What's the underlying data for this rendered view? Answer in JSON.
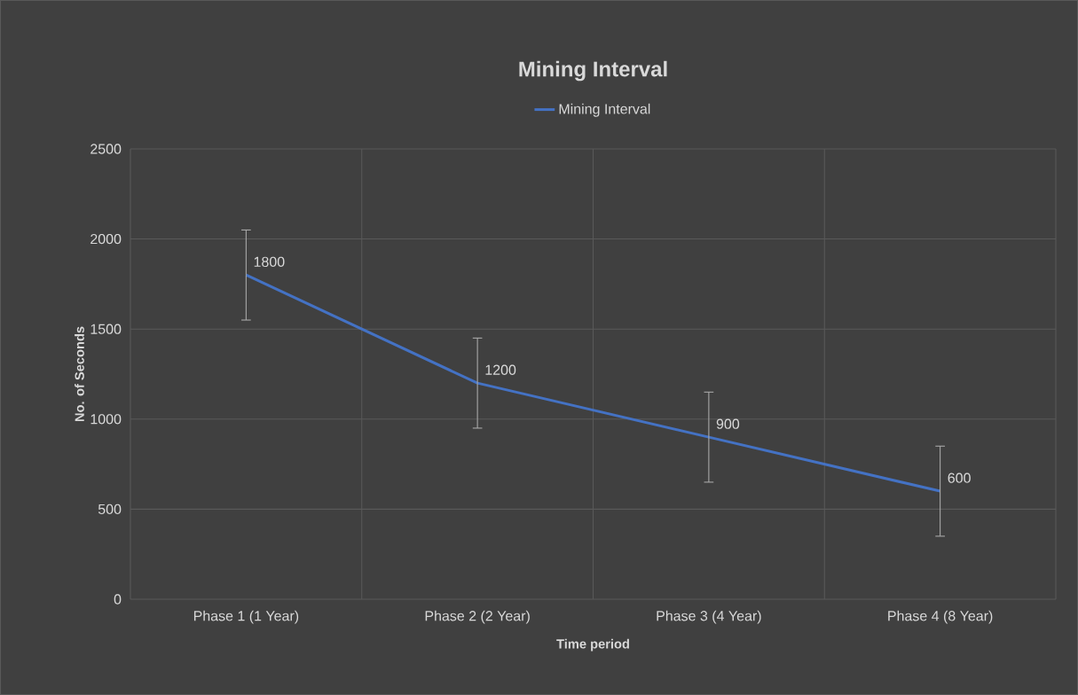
{
  "chart_data": {
    "type": "line",
    "title": "Mining Interval",
    "xlabel": "Time period",
    "ylabel": "No. of  Seconds",
    "categories": [
      "Phase 1 (1 Year)",
      "Phase 2 (2 Year)",
      "Phase 3 (4 Year)",
      "Phase 4 (8 Year)"
    ],
    "series": [
      {
        "name": "Mining Interval",
        "color": "#4472c4",
        "values": [
          1800,
          1200,
          900,
          600
        ],
        "errors": [
          250,
          250,
          250,
          250
        ]
      }
    ],
    "ylim": [
      0,
      2500
    ],
    "yticks": [
      0,
      500,
      1000,
      1500,
      2000,
      2500
    ],
    "grid": true,
    "legend": "top",
    "data_labels": true,
    "marker": "none",
    "line_style": "solid"
  }
}
